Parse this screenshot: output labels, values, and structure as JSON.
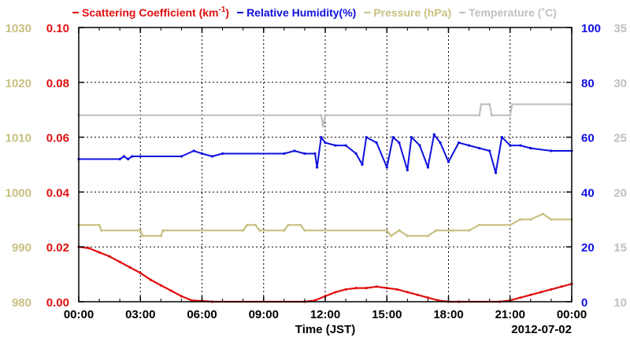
{
  "chart_data": {
    "type": "line",
    "date": "2012-07-02",
    "xlabel": "Time (JST)",
    "xlim": [
      "00:00",
      "24:00"
    ],
    "x_ticks": [
      "00:00",
      "03:00",
      "06:00",
      "09:00",
      "12:00",
      "15:00",
      "18:00",
      "21:00",
      "00:00"
    ],
    "grid": true,
    "legend_position": "top",
    "colors": {
      "scattering": "#e01010",
      "humidity": "#1010e0",
      "pressure": "#c8c080",
      "temperature": "#c0c0c0"
    },
    "axes": {
      "scattering": {
        "side": "left-inner",
        "range": [
          0,
          0.1
        ],
        "ticks": [
          "0.00",
          "0.02",
          "0.04",
          "0.06",
          "0.08",
          "0.10"
        ]
      },
      "pressure": {
        "side": "left-outer",
        "range": [
          980,
          1030
        ],
        "ticks": [
          "980",
          "990",
          "1000",
          "1010",
          "1020",
          "1030"
        ]
      },
      "humidity": {
        "side": "right-inner",
        "range": [
          0,
          100
        ],
        "ticks": [
          "0",
          "20",
          "40",
          "60",
          "80",
          "100"
        ]
      },
      "temperature": {
        "side": "right-outer",
        "range": [
          10,
          35
        ],
        "ticks": [
          "10",
          "15",
          "20",
          "25",
          "30",
          "35"
        ]
      }
    },
    "legend": [
      {
        "id": "scattering",
        "label": "Scattering Coefficient (km",
        "sup": "-1",
        "suffix": ")"
      },
      {
        "id": "humidity",
        "label": "Relative Humidity(%)"
      },
      {
        "id": "pressure",
        "label": "Pressure (hPa)"
      },
      {
        "id": "temperature",
        "label": "Temperature (˚C)"
      }
    ],
    "series": [
      {
        "id": "scattering",
        "name": "Scattering Coefficient",
        "x": [
          0,
          0.5,
          1,
          1.5,
          2,
          2.5,
          3,
          3.5,
          4,
          4.5,
          5,
          5.5,
          6,
          6.5,
          11,
          11.5,
          12,
          12.5,
          13,
          13.5,
          14,
          14.5,
          15,
          15.5,
          16,
          16.5,
          17,
          17.5,
          18,
          18.5,
          20.5,
          21,
          21.5,
          22,
          22.5,
          23,
          23.5,
          24
        ],
        "y": [
          0.02,
          0.0195,
          0.018,
          0.0165,
          0.0145,
          0.0125,
          0.0105,
          0.008,
          0.006,
          0.004,
          0.002,
          0.0005,
          0.0003,
          0.0,
          0.0,
          0.0005,
          0.002,
          0.0035,
          0.0045,
          0.005,
          0.005,
          0.0055,
          0.005,
          0.0045,
          0.0035,
          0.0025,
          0.0015,
          0.0005,
          0.0,
          0.0,
          0.0,
          0.0005,
          0.0015,
          0.0025,
          0.0035,
          0.0045,
          0.0055,
          0.0065
        ]
      },
      {
        "id": "humidity",
        "name": "Relative Humidity",
        "x": [
          0,
          2,
          2.2,
          2.4,
          2.6,
          3,
          5,
          5.6,
          6,
          6.5,
          7,
          10,
          10.5,
          11,
          11.5,
          11.6,
          11.8,
          12,
          12.5,
          13,
          13.5,
          13.8,
          14,
          14.5,
          15,
          15.3,
          15.6,
          16,
          16.2,
          16.6,
          17,
          17.3,
          17.6,
          18,
          18.5,
          19,
          19.5,
          20,
          20.3,
          20.6,
          21,
          21.5,
          22,
          23,
          24
        ],
        "y": [
          52,
          52,
          53,
          52,
          53,
          53,
          53,
          55,
          54,
          53,
          54,
          54,
          55,
          54,
          54,
          49,
          60,
          58,
          57,
          57,
          54,
          50,
          60,
          58,
          49,
          60,
          58,
          48,
          60,
          57,
          49,
          61,
          58,
          51,
          58,
          57,
          56,
          55,
          47,
          60,
          57,
          57,
          56,
          55,
          55
        ]
      },
      {
        "id": "pressure",
        "name": "Pressure",
        "x": [
          0,
          1,
          1.1,
          3,
          3.1,
          4,
          4.1,
          8,
          8.2,
          8.6,
          8.8,
          10,
          10.2,
          10.8,
          11,
          15,
          15.2,
          15.6,
          16,
          17,
          17.4,
          18,
          18.2,
          19,
          19.5,
          21,
          21.5,
          22,
          22.6,
          23,
          24
        ],
        "y": [
          994,
          994,
          993,
          993,
          992,
          992,
          993,
          993,
          994,
          994,
          993,
          993,
          994,
          994,
          993,
          993,
          992,
          993,
          992,
          992,
          993,
          993,
          993,
          993,
          994,
          994,
          995,
          995,
          996,
          995,
          995
        ]
      },
      {
        "id": "temperature",
        "name": "Temperature",
        "x": [
          0,
          11.8,
          11.9,
          12,
          19.5,
          19.6,
          20,
          20.1,
          21,
          21.1,
          24
        ],
        "y": [
          27,
          27,
          26,
          27,
          27,
          28,
          28,
          27,
          27,
          28,
          28
        ]
      }
    ]
  }
}
